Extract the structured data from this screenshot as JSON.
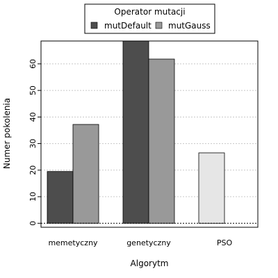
{
  "chart_data": {
    "type": "bar",
    "title": "",
    "xlabel": "Algorytm",
    "ylabel": "Numer pokolenia",
    "categories": [
      "memetyczny",
      "genetyczny",
      "PSO"
    ],
    "series": [
      {
        "name": "mutDefault",
        "values": [
          19.5,
          68.6,
          26.5
        ],
        "color": "#4d4d4d"
      },
      {
        "name": "mutGauss",
        "values": [
          37.2,
          61.8,
          null
        ],
        "color": "#999999"
      }
    ],
    "pso_bar_color": "#e6e6e6",
    "yticks": [
      0,
      10,
      20,
      30,
      40,
      50,
      60
    ],
    "ylim": [
      -1.5,
      68.6
    ],
    "grid": "horizontal dotted",
    "zero_line": "dotted",
    "legend": {
      "title": "Operator mutacji",
      "placement": "top-center",
      "items": [
        "mutDefault",
        "mutGauss"
      ]
    }
  }
}
